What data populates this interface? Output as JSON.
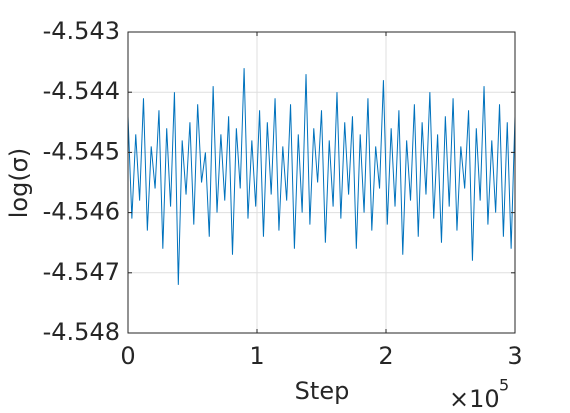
{
  "chart_data": {
    "type": "line",
    "xlabel": "Step",
    "ylabel": "log(σ)",
    "x_multiplier": "×10",
    "x_multiplier_power": "5",
    "x": [
      0,
      3000,
      6000,
      9000,
      12000,
      15000,
      18000,
      21000,
      24000,
      27000,
      30000,
      33000,
      36000,
      39000,
      42000,
      45000,
      48000,
      51000,
      54000,
      57000,
      60000,
      63000,
      66000,
      69000,
      72000,
      75000,
      78000,
      81000,
      84000,
      87000,
      90000,
      93000,
      96000,
      99000,
      102000,
      105000,
      108000,
      111000,
      114000,
      117000,
      120000,
      123000,
      126000,
      129000,
      132000,
      135000,
      138000,
      141000,
      144000,
      147000,
      150000,
      153000,
      156000,
      159000,
      162000,
      165000,
      168000,
      171000,
      174000,
      177000,
      180000,
      183000,
      186000,
      189000,
      192000,
      195000,
      198000,
      201000,
      204000,
      207000,
      210000,
      213000,
      216000,
      219000,
      222000,
      225000,
      228000,
      231000,
      234000,
      237000,
      240000,
      243000,
      246000,
      249000,
      252000,
      255000,
      258000,
      261000,
      264000,
      267000,
      270000,
      273000,
      276000,
      279000,
      282000,
      285000,
      288000,
      291000,
      294000,
      297000,
      300000
    ],
    "series": [
      {
        "color": "#0072bd",
        "values": [
          -4.5444,
          -4.5461,
          -4.5447,
          -4.5458,
          -4.5441,
          -4.5463,
          -4.5449,
          -4.5456,
          -4.5443,
          -4.5466,
          -4.5446,
          -4.5459,
          -4.544,
          -4.5472,
          -4.5448,
          -4.5457,
          -4.5445,
          -4.5462,
          -4.5442,
          -4.5455,
          -4.545,
          -4.5464,
          -4.5439,
          -4.546,
          -4.5447,
          -4.5458,
          -4.5444,
          -4.5467,
          -4.5446,
          -4.5456,
          -4.5436,
          -4.5461,
          -4.5448,
          -4.5459,
          -4.5443,
          -4.5464,
          -4.5445,
          -4.5457,
          -4.5441,
          -4.5463,
          -4.5449,
          -4.5458,
          -4.5442,
          -4.5466,
          -4.5447,
          -4.546,
          -4.5437,
          -4.5462,
          -4.5446,
          -4.5455,
          -4.5443,
          -4.5465,
          -4.5448,
          -4.5459,
          -4.544,
          -4.5461,
          -4.5445,
          -4.5457,
          -4.5444,
          -4.5466,
          -4.5447,
          -4.546,
          -4.5441,
          -4.5463,
          -4.5449,
          -4.5456,
          -4.5438,
          -4.5462,
          -4.5446,
          -4.5459,
          -4.5443,
          -4.5467,
          -4.5448,
          -4.5458,
          -4.5442,
          -4.5464,
          -4.5445,
          -4.5457,
          -4.544,
          -4.5461,
          -4.5447,
          -4.5465,
          -4.5444,
          -4.5459,
          -4.5441,
          -4.5463,
          -4.5449,
          -4.5456,
          -4.5443,
          -4.5468,
          -4.5446,
          -4.5458,
          -4.5439,
          -4.5462,
          -4.5448,
          -4.546,
          -4.5442,
          -4.5464,
          -4.5445,
          -4.5466,
          -4.5444
        ]
      }
    ],
    "xlim": [
      0,
      300000
    ],
    "xticks": [
      0,
      {
        "value": 100000,
        "label": "1"
      },
      {
        "value": 200000,
        "label": "2"
      },
      {
        "value": 300000,
        "label": "3"
      }
    ],
    "ylim": [
      -4.548,
      -4.543
    ],
    "yticks": [
      -4.548,
      -4.547,
      -4.546,
      -4.545,
      -4.544,
      -4.543
    ],
    "grid": true
  }
}
